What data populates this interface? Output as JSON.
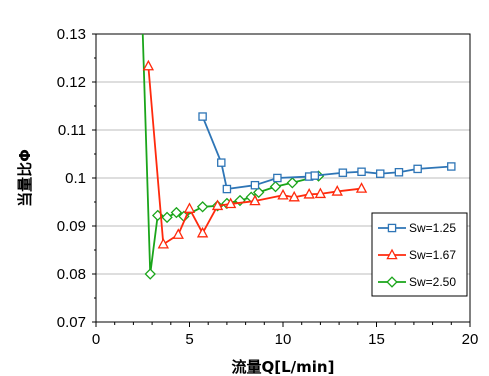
{
  "chart_data": {
    "type": "line",
    "xlabel": "流量Q[L/min]",
    "ylabel": "当量比Φ",
    "xlim": [
      0,
      20
    ],
    "ylim": [
      0.07,
      0.13
    ],
    "xticks": [
      0,
      5,
      10,
      15,
      20
    ],
    "yticks": [
      0.07,
      0.08,
      0.09,
      0.1,
      0.11,
      0.12,
      0.13
    ],
    "ytick_labels": [
      "0.07",
      "0.08",
      "0.09",
      "0.1",
      "0.11",
      "0.12",
      "0.13"
    ],
    "xtick_labels": [
      "0",
      "5",
      "10",
      "15",
      "20"
    ],
    "grid": "horizontal",
    "legend_position": "bottom-right",
    "series": [
      {
        "name": "Sw=1.25",
        "color": "#2e75b6",
        "marker": "square",
        "x": [
          5.7,
          6.7,
          7.0,
          8.5,
          9.7,
          11.4,
          11.7,
          13.2,
          14.2,
          15.2,
          16.2,
          17.2,
          19.0
        ],
        "y": [
          0.1128,
          0.1032,
          0.0977,
          0.0985,
          0.1,
          0.1003,
          0.1005,
          0.1011,
          0.1013,
          0.1009,
          0.1012,
          0.1019,
          0.1024
        ]
      },
      {
        "name": "Sw=1.67",
        "color": "#ff2a0d",
        "marker": "triangle",
        "x": [
          2.8,
          3.6,
          4.4,
          5.0,
          5.7,
          6.5,
          7.2,
          8.5,
          10.0,
          10.6,
          11.4,
          12.0,
          12.9,
          14.2
        ],
        "y": [
          0.1233,
          0.0862,
          0.0882,
          0.0936,
          0.0885,
          0.0942,
          0.0946,
          0.0952,
          0.0964,
          0.096,
          0.0966,
          0.0967,
          0.0972,
          0.0978
        ]
      },
      {
        "name": "Sw=2.50",
        "color": "#1aa51a",
        "marker": "diamond",
        "x": [
          2.5,
          2.9,
          3.3,
          3.8,
          4.3,
          4.7,
          5.7,
          6.5,
          7.0,
          7.7,
          8.3,
          8.7,
          9.6,
          10.5,
          11.9
        ],
        "y": [
          0.13,
          0.08,
          0.0922,
          0.0918,
          0.0928,
          0.092,
          0.094,
          0.0942,
          0.0947,
          0.0953,
          0.096,
          0.097,
          0.0982,
          0.099,
          0.1004
        ],
        "marker_from_index": 1
      }
    ]
  }
}
